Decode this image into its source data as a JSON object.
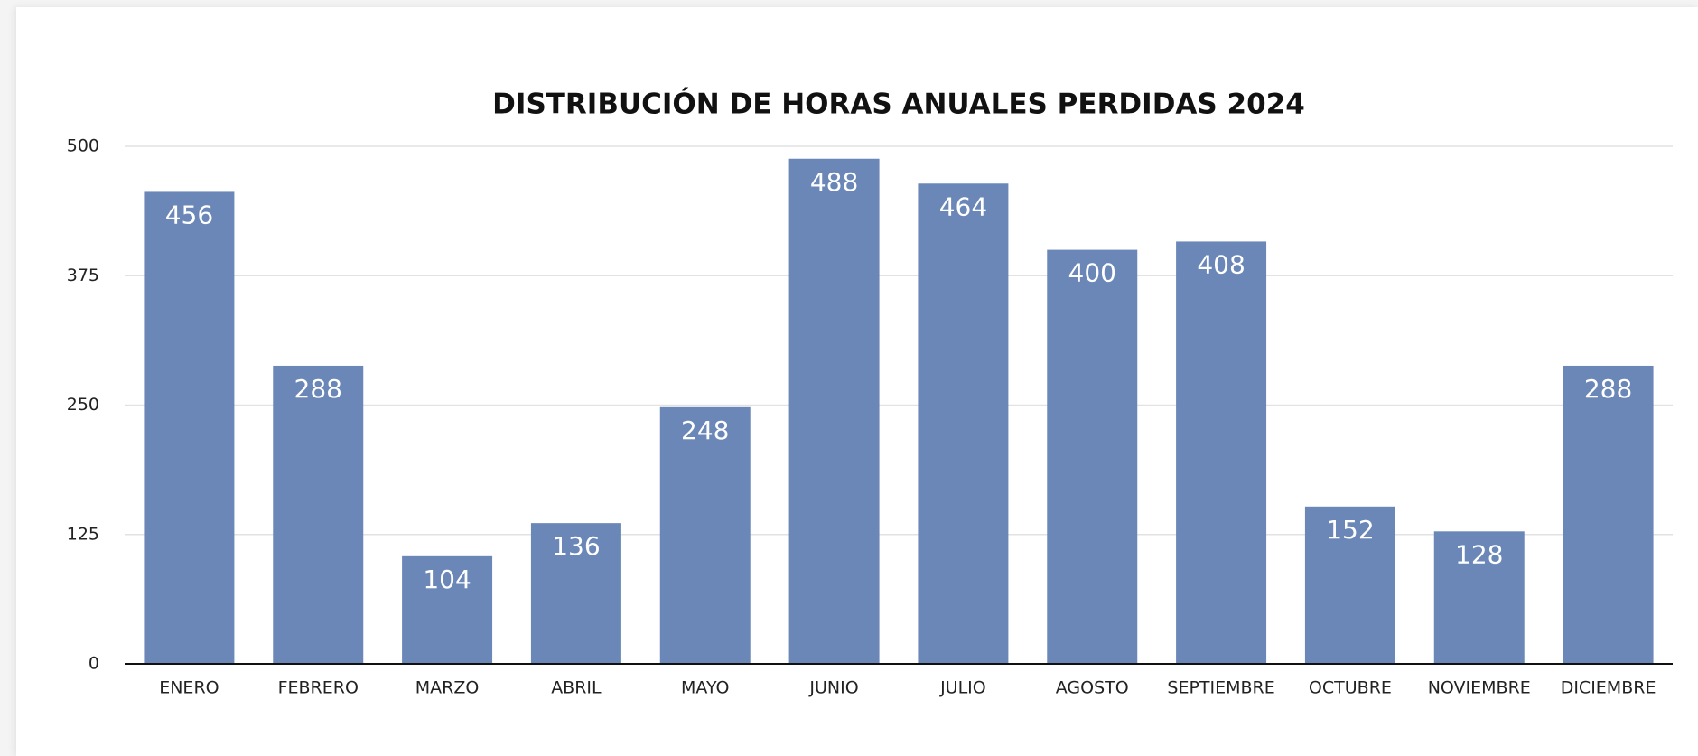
{
  "chart_data": {
    "type": "bar",
    "title": "DISTRIBUCIÓN DE HORAS ANUALES PERDIDAS 2024",
    "categories": [
      "ENERO",
      "FEBRERO",
      "MARZO",
      "ABRIL",
      "MAYO",
      "JUNIO",
      "JULIO",
      "AGOSTO",
      "SEPTIEMBRE",
      "OCTUBRE",
      "NOVIEMBRE",
      "DICIEMBRE"
    ],
    "values": [
      456,
      288,
      104,
      136,
      248,
      488,
      464,
      400,
      408,
      152,
      128,
      288
    ],
    "color": "#6a87b8",
    "ylim": [
      0,
      500
    ],
    "yticks": [
      0,
      125,
      250,
      375,
      500
    ],
    "grid": true
  }
}
